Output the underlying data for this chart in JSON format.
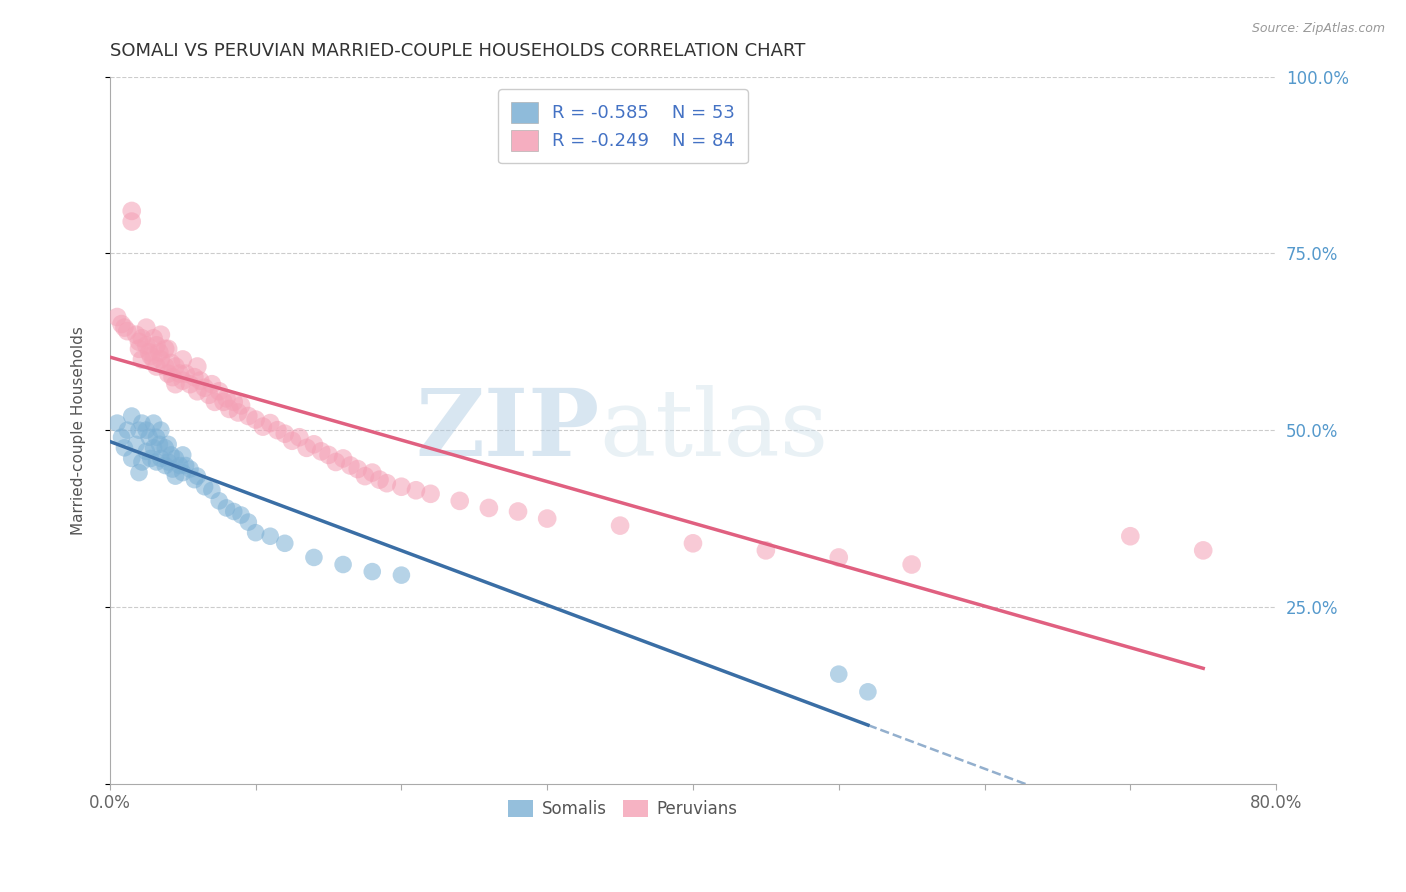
{
  "title": "SOMALI VS PERUVIAN MARRIED-COUPLE HOUSEHOLDS CORRELATION CHART",
  "source": "Source: ZipAtlas.com",
  "ylabel": "Married-couple Households",
  "xlim": [
    0.0,
    0.8
  ],
  "ylim": [
    0.0,
    1.0
  ],
  "somali_R": -0.585,
  "somali_N": 53,
  "peruvian_R": -0.249,
  "peruvian_N": 84,
  "somali_color": "#7bafd4",
  "peruvian_color": "#f4a0b5",
  "somali_line_color": "#3a6ea5",
  "peruvian_line_color": "#e06080",
  "legend_label_somali": "Somalis",
  "legend_label_peruvian": "Peruvians",
  "watermark_zip": "ZIP",
  "watermark_atlas": "atlas",
  "background_color": "#ffffff",
  "grid_color": "#cccccc",
  "somali_x": [
    0.005,
    0.008,
    0.01,
    0.012,
    0.015,
    0.015,
    0.018,
    0.02,
    0.02,
    0.022,
    0.022,
    0.025,
    0.025,
    0.027,
    0.028,
    0.03,
    0.03,
    0.032,
    0.032,
    0.034,
    0.035,
    0.035,
    0.038,
    0.038,
    0.04,
    0.04,
    0.042,
    0.043,
    0.045,
    0.045,
    0.048,
    0.05,
    0.05,
    0.052,
    0.055,
    0.058,
    0.06,
    0.065,
    0.07,
    0.075,
    0.08,
    0.085,
    0.09,
    0.095,
    0.1,
    0.11,
    0.12,
    0.14,
    0.16,
    0.18,
    0.2,
    0.5,
    0.52
  ],
  "somali_y": [
    0.51,
    0.49,
    0.475,
    0.5,
    0.52,
    0.46,
    0.48,
    0.5,
    0.44,
    0.51,
    0.455,
    0.5,
    0.47,
    0.49,
    0.46,
    0.51,
    0.475,
    0.49,
    0.455,
    0.48,
    0.5,
    0.46,
    0.475,
    0.45,
    0.48,
    0.455,
    0.465,
    0.445,
    0.46,
    0.435,
    0.45,
    0.465,
    0.44,
    0.45,
    0.445,
    0.43,
    0.435,
    0.42,
    0.415,
    0.4,
    0.39,
    0.385,
    0.38,
    0.37,
    0.355,
    0.35,
    0.34,
    0.32,
    0.31,
    0.3,
    0.295,
    0.155,
    0.13
  ],
  "peruvian_x": [
    0.005,
    0.008,
    0.01,
    0.012,
    0.015,
    0.015,
    0.018,
    0.02,
    0.02,
    0.022,
    0.022,
    0.025,
    0.025,
    0.027,
    0.028,
    0.03,
    0.03,
    0.032,
    0.032,
    0.034,
    0.035,
    0.035,
    0.038,
    0.038,
    0.04,
    0.04,
    0.042,
    0.043,
    0.045,
    0.045,
    0.048,
    0.05,
    0.05,
    0.052,
    0.055,
    0.058,
    0.06,
    0.06,
    0.062,
    0.065,
    0.068,
    0.07,
    0.072,
    0.075,
    0.078,
    0.08,
    0.082,
    0.085,
    0.088,
    0.09,
    0.095,
    0.1,
    0.105,
    0.11,
    0.115,
    0.12,
    0.125,
    0.13,
    0.135,
    0.14,
    0.145,
    0.15,
    0.155,
    0.16,
    0.165,
    0.17,
    0.175,
    0.18,
    0.185,
    0.19,
    0.2,
    0.21,
    0.22,
    0.24,
    0.26,
    0.28,
    0.3,
    0.35,
    0.4,
    0.45,
    0.5,
    0.55,
    0.7,
    0.75
  ],
  "peruvian_y": [
    0.66,
    0.65,
    0.645,
    0.64,
    0.81,
    0.795,
    0.635,
    0.625,
    0.615,
    0.63,
    0.6,
    0.645,
    0.62,
    0.61,
    0.605,
    0.63,
    0.6,
    0.62,
    0.59,
    0.61,
    0.635,
    0.6,
    0.615,
    0.59,
    0.615,
    0.58,
    0.595,
    0.575,
    0.59,
    0.565,
    0.58,
    0.6,
    0.57,
    0.58,
    0.565,
    0.575,
    0.59,
    0.555,
    0.57,
    0.56,
    0.55,
    0.565,
    0.54,
    0.555,
    0.54,
    0.545,
    0.53,
    0.54,
    0.525,
    0.535,
    0.52,
    0.515,
    0.505,
    0.51,
    0.5,
    0.495,
    0.485,
    0.49,
    0.475,
    0.48,
    0.47,
    0.465,
    0.455,
    0.46,
    0.45,
    0.445,
    0.435,
    0.44,
    0.43,
    0.425,
    0.42,
    0.415,
    0.41,
    0.4,
    0.39,
    0.385,
    0.375,
    0.365,
    0.34,
    0.33,
    0.32,
    0.31,
    0.35,
    0.33
  ]
}
